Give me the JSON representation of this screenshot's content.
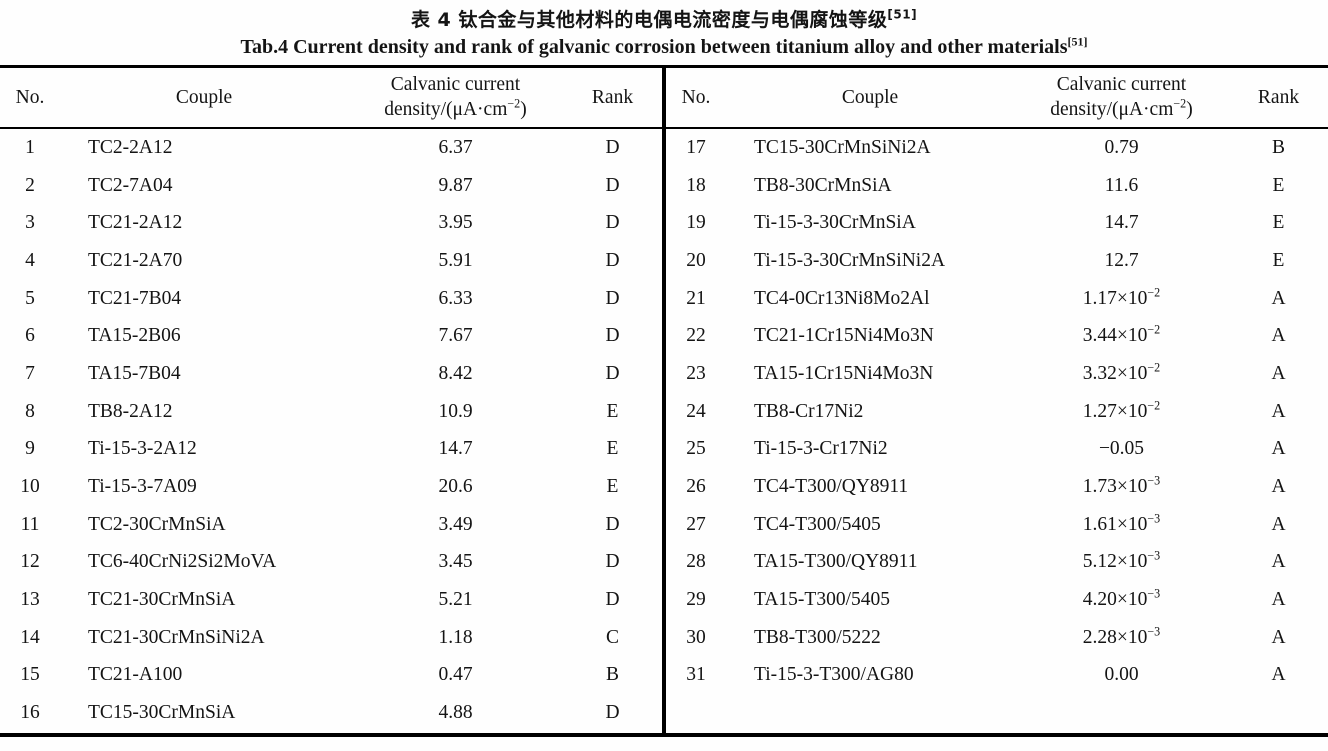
{
  "title": {
    "zh": "表 4  钛合金与其他材料的电偶电流密度与电偶腐蚀等级",
    "zh_sup": "[51]",
    "en": "Tab.4 Current density and rank of galvanic corrosion between titanium alloy and other materials",
    "en_sup": "[51]"
  },
  "table": {
    "headers": {
      "no": "No.",
      "couple": "Couple",
      "density_line1": "Calvanic current",
      "density_line2": "density/(μA·cm^−2)",
      "rank": "Rank"
    },
    "left_rows": [
      {
        "no": "1",
        "couple": "TC2-2A12",
        "density": "6.37",
        "rank": "D"
      },
      {
        "no": "2",
        "couple": "TC2-7A04",
        "density": "9.87",
        "rank": "D"
      },
      {
        "no": "3",
        "couple": "TC21-2A12",
        "density": "3.95",
        "rank": "D"
      },
      {
        "no": "4",
        "couple": "TC21-2A70",
        "density": "5.91",
        "rank": "D"
      },
      {
        "no": "5",
        "couple": "TC21-7B04",
        "density": "6.33",
        "rank": "D"
      },
      {
        "no": "6",
        "couple": "TA15-2B06",
        "density": "7.67",
        "rank": "D"
      },
      {
        "no": "7",
        "couple": "TA15-7B04",
        "density": "8.42",
        "rank": "D"
      },
      {
        "no": "8",
        "couple": "TB8-2A12",
        "density": "10.9",
        "rank": "E"
      },
      {
        "no": "9",
        "couple": "Ti-15-3-2A12",
        "density": "14.7",
        "rank": "E"
      },
      {
        "no": "10",
        "couple": "Ti-15-3-7A09",
        "density": "20.6",
        "rank": "E"
      },
      {
        "no": "11",
        "couple": "TC2-30CrMnSiA",
        "density": "3.49",
        "rank": "D"
      },
      {
        "no": "12",
        "couple": "TC6-40CrNi2Si2MoVA",
        "density": "3.45",
        "rank": "D"
      },
      {
        "no": "13",
        "couple": "TC21-30CrMnSiA",
        "density": "5.21",
        "rank": "D"
      },
      {
        "no": "14",
        "couple": "TC21-30CrMnSiNi2A",
        "density": "1.18",
        "rank": "C"
      },
      {
        "no": "15",
        "couple": "TC21-A100",
        "density": "0.47",
        "rank": "B"
      },
      {
        "no": "16",
        "couple": "TC15-30CrMnSiA",
        "density": "4.88",
        "rank": "D"
      }
    ],
    "right_rows": [
      {
        "no": "17",
        "couple": "TC15-30CrMnSiNi2A",
        "density": "0.79",
        "rank": "B"
      },
      {
        "no": "18",
        "couple": "TB8-30CrMnSiA",
        "density": "11.6",
        "rank": "E"
      },
      {
        "no": "19",
        "couple": "Ti-15-3-30CrMnSiA",
        "density": "14.7",
        "rank": "E"
      },
      {
        "no": "20",
        "couple": "Ti-15-3-30CrMnSiNi2A",
        "density": "12.7",
        "rank": "E"
      },
      {
        "no": "21",
        "couple": "TC4-0Cr13Ni8Mo2Al",
        "density": "1.17×10^−2",
        "rank": "A"
      },
      {
        "no": "22",
        "couple": "TC21-1Cr15Ni4Mo3N",
        "density": "3.44×10^−2",
        "rank": "A"
      },
      {
        "no": "23",
        "couple": "TA15-1Cr15Ni4Mo3N",
        "density": "3.32×10^−2",
        "rank": "A"
      },
      {
        "no": "24",
        "couple": "TB8-Cr17Ni2",
        "density": "1.27×10^−2",
        "rank": "A"
      },
      {
        "no": "25",
        "couple": "Ti-15-3-Cr17Ni2",
        "density": "−0.05",
        "rank": "A"
      },
      {
        "no": "26",
        "couple": "TC4-T300/QY8911",
        "density": "1.73×10^−3",
        "rank": "A"
      },
      {
        "no": "27",
        "couple": "TC4-T300/5405",
        "density": "1.61×10^−3",
        "rank": "A"
      },
      {
        "no": "28",
        "couple": "TA15-T300/QY8911",
        "density": "5.12×10^−3",
        "rank": "A"
      },
      {
        "no": "29",
        "couple": "TA15-T300/5405",
        "density": "4.20×10^−3",
        "rank": "A"
      },
      {
        "no": "30",
        "couple": "TB8-T300/5222",
        "density": "2.28×10^−3",
        "rank": "A"
      },
      {
        "no": "31",
        "couple": "Ti-15-3-T300/AG80",
        "density": "0.00",
        "rank": "A"
      }
    ]
  }
}
